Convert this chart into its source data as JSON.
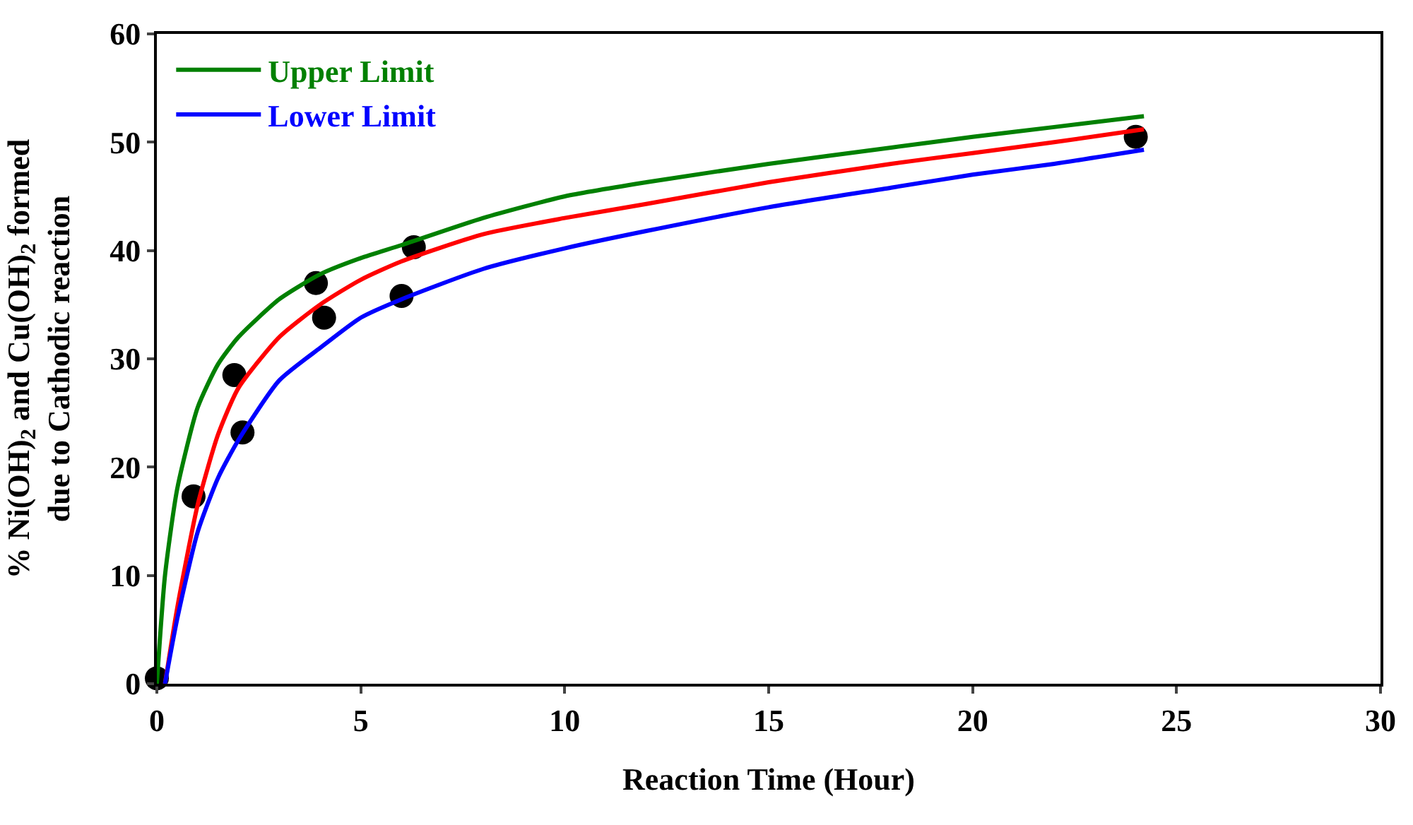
{
  "chart_data": {
    "type": "line",
    "xlabel": "Reaction Time (Hour)",
    "ylabel": "% Ni(OH)$_{2}$ and Cu(OH)$_{2}$ formed\ndue to Cathodic reaction",
    "xlim": [
      0,
      30
    ],
    "xticks": [
      0,
      5,
      10,
      15,
      20,
      25,
      30
    ],
    "ylim": [
      0,
      60
    ],
    "yticks": [
      0,
      10,
      20,
      30,
      40,
      50,
      60
    ],
    "grid": false,
    "legend": "top left",
    "marker": "none",
    "line_style": "solid",
    "series": [
      {
        "name": "Upper Limit",
        "color": "#008000",
        "x": [
          0,
          0.2,
          0.5,
          1,
          1.5,
          2,
          3,
          4,
          5,
          6,
          8,
          10,
          12,
          15,
          18,
          20,
          22,
          24.2
        ],
        "values": [
          0,
          10,
          18,
          25.5,
          29.5,
          32,
          35.5,
          37.8,
          39.3,
          40.5,
          43,
          45,
          46.3,
          48,
          49.5,
          50.5,
          51.4,
          52.4
        ]
      },
      {
        "color": "#ff0000",
        "x": [
          0.2,
          0.5,
          1,
          1.5,
          2,
          3,
          4,
          5,
          6,
          8,
          10,
          12,
          15,
          18,
          20,
          22,
          24.2
        ],
        "values": [
          0,
          7,
          16.5,
          23,
          27.3,
          32,
          35,
          37.3,
          39,
          41.5,
          43,
          44.3,
          46.3,
          48,
          49,
          50,
          51.2
        ]
      },
      {
        "name": "Lower Limit",
        "color": "#0000ff",
        "x": [
          0.2,
          0.5,
          1,
          1.5,
          2,
          3,
          4,
          5,
          6,
          8,
          10,
          12,
          15,
          18,
          20,
          22,
          24.2
        ],
        "values": [
          0,
          6,
          14,
          19,
          22.5,
          28,
          31,
          33.8,
          35.5,
          38.3,
          40.2,
          41.8,
          44,
          45.8,
          47,
          48,
          49.3
        ]
      },
      {
        "type": "scatter",
        "marker": "circle",
        "color": "#000000",
        "x": [
          0,
          0.9,
          1.9,
          2.1,
          3.9,
          4.1,
          6,
          6.3,
          24
        ],
        "values": [
          0.5,
          17.3,
          28.5,
          23.2,
          37,
          33.8,
          35.8,
          40.3,
          50.5
        ]
      }
    ]
  }
}
